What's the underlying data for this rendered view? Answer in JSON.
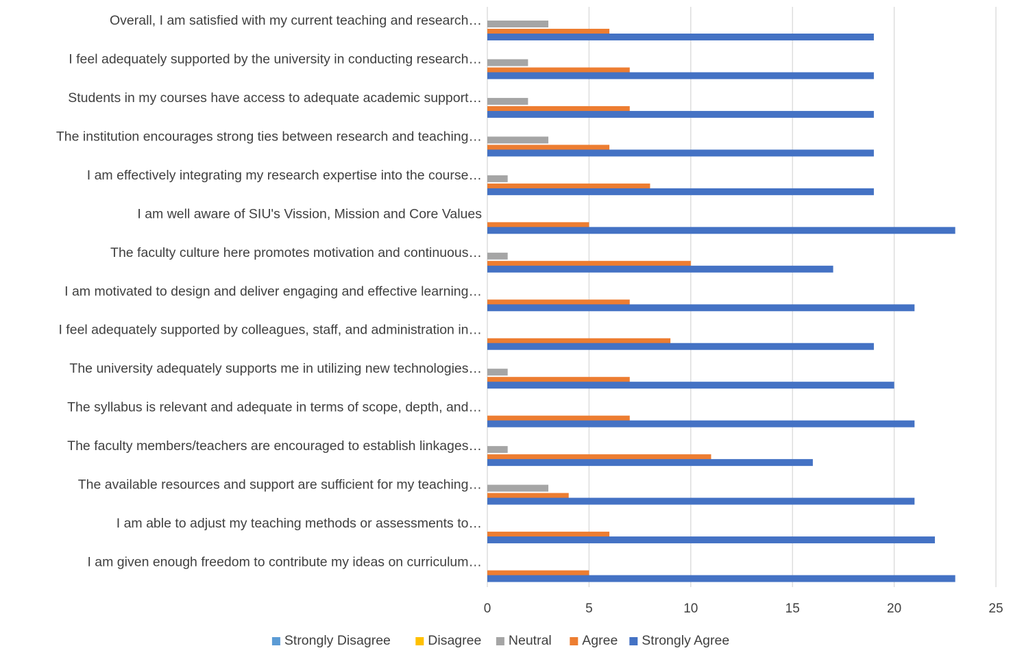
{
  "chart_data": {
    "type": "bar",
    "orientation": "horizontal",
    "title": "",
    "xlabel": "",
    "ylabel": "",
    "xlim": [
      0,
      25
    ],
    "x_ticks": [
      "0",
      "5",
      "10",
      "15",
      "20",
      "25"
    ],
    "grid": "vertical",
    "legend_position": "bottom",
    "categories": [
      "I am given enough freedom to contribute my ideas on curriculum…",
      "I am able to adjust my teaching methods or assessments to…",
      "The available resources and support are sufficient for my teaching…",
      "The faculty members/teachers are encouraged to establish linkages…",
      "The syllabus is relevant and adequate in terms of scope, depth, and…",
      "The university adequately supports me in utilizing new technologies…",
      "I feel adequately supported by colleagues, staff, and administration in…",
      "I am motivated to design and deliver engaging and effective learning…",
      "The faculty culture here promotes motivation and continuous…",
      "I am well aware of SIU's Vission, Mission and Core Values",
      "I am effectively integrating my research expertise into the course…",
      "The institution encourages strong ties between research and teaching…",
      "Students in my courses have access to adequate academic support…",
      "I feel adequately supported by the university in conducting research…",
      "Overall, I am satisfied with my current teaching and research…"
    ],
    "series": [
      {
        "name": "Strongly Disagree",
        "color": "#5b9bd5",
        "values": [
          0,
          0,
          0,
          0,
          0,
          0,
          0,
          0,
          0,
          0,
          0,
          0,
          0,
          0,
          0
        ]
      },
      {
        "name": "Disagree",
        "color": "#ffc000",
        "values": [
          0,
          0,
          0,
          0,
          0,
          0,
          0,
          0,
          0,
          0,
          0,
          0,
          0,
          0,
          0
        ]
      },
      {
        "name": "Neutral",
        "color": "#a5a5a5",
        "values": [
          0,
          0,
          3,
          1,
          0,
          1,
          0,
          0,
          1,
          0,
          1,
          3,
          2,
          2,
          3
        ]
      },
      {
        "name": "Agree",
        "color": "#ed7d31",
        "values": [
          5,
          6,
          4,
          11,
          7,
          7,
          9,
          7,
          10,
          5,
          8,
          6,
          7,
          7,
          6
        ]
      },
      {
        "name": "Strongly Agree",
        "color": "#4472c4",
        "values": [
          23,
          22,
          21,
          16,
          21,
          20,
          19,
          21,
          17,
          23,
          19,
          19,
          19,
          19,
          19
        ]
      }
    ]
  }
}
